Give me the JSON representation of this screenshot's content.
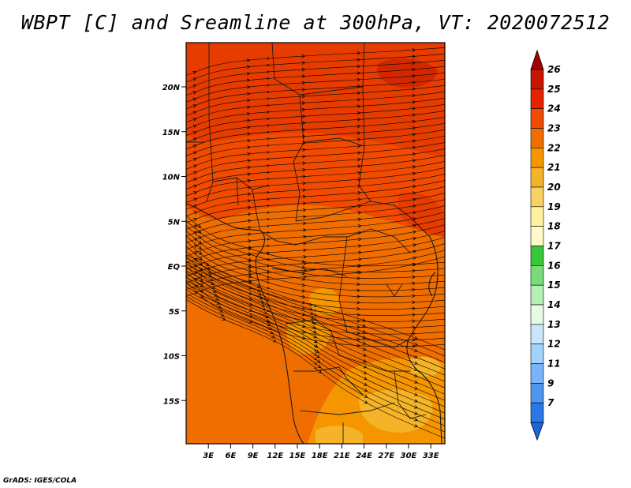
{
  "title": "WBPT [C] and Sreamline at 300hPa, VT: 2020072512",
  "credit": "GrADS: IGES/COLA",
  "map": {
    "lat_labels": [
      {
        "text": "20N",
        "lat": 20
      },
      {
        "text": "15N",
        "lat": 15
      },
      {
        "text": "10N",
        "lat": 10
      },
      {
        "text": "5N",
        "lat": 5
      },
      {
        "text": "EQ",
        "lat": 0
      },
      {
        "text": "5S",
        "lat": -5
      },
      {
        "text": "10S",
        "lat": -10
      },
      {
        "text": "15S",
        "lat": -15
      }
    ],
    "lon_labels": [
      {
        "text": "3E",
        "lon": 3
      },
      {
        "text": "6E",
        "lon": 6
      },
      {
        "text": "9E",
        "lon": 9
      },
      {
        "text": "12E",
        "lon": 12
      },
      {
        "text": "15E",
        "lon": 15
      },
      {
        "text": "18E",
        "lon": 18
      },
      {
        "text": "21E",
        "lon": 21
      },
      {
        "text": "24E",
        "lon": 24
      },
      {
        "text": "27E",
        "lon": 27
      },
      {
        "text": "30E",
        "lon": 30
      },
      {
        "text": "33E",
        "lon": 33
      }
    ]
  },
  "colorbar": {
    "labels": [
      "26",
      "25",
      "24",
      "23",
      "22",
      "21",
      "20",
      "19",
      "18",
      "17",
      "16",
      "15",
      "14",
      "13",
      "12",
      "11",
      "9",
      "7"
    ],
    "colors": [
      "#a50000",
      "#c81400",
      "#e62300",
      "#f04b00",
      "#f06e00",
      "#f59600",
      "#f5b428",
      "#fad264",
      "#fff0a0",
      "#fffac8",
      "#37c837",
      "#78dc78",
      "#b4f0b4",
      "#e6fae6",
      "#c8e6fa",
      "#a0d2fa",
      "#78b4fa",
      "#5096f0",
      "#2878e6",
      "#1e64dc"
    ]
  }
}
